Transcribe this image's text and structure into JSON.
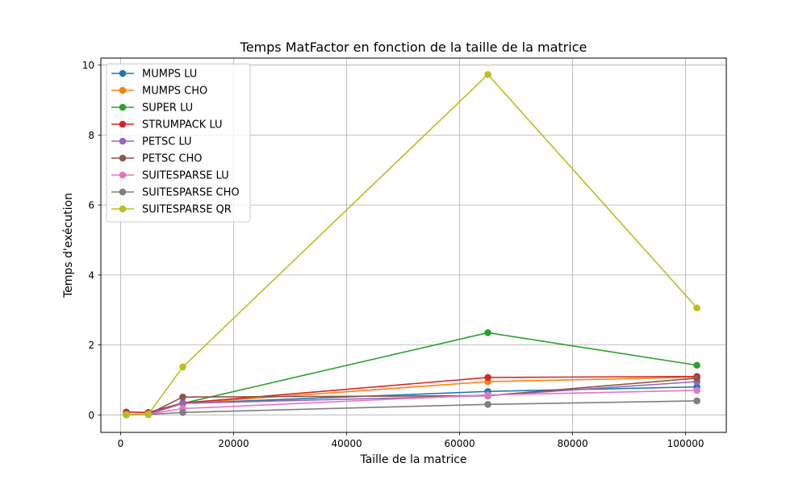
{
  "chart_data": {
    "type": "line",
    "title": "Temps MatFactor en fonction de la taille de la matrice",
    "xlabel": "Taille de la matrice",
    "ylabel": "Temps d'exécution",
    "xlim": [
      -3500,
      107200
    ],
    "ylim": [
      -0.5,
      10.2
    ],
    "xticks": [
      0,
      20000,
      40000,
      60000,
      80000,
      100000
    ],
    "yticks": [
      0,
      2,
      4,
      6,
      8,
      10
    ],
    "grid": true,
    "legend_position": "top-left",
    "x": [
      1000,
      4900,
      11000,
      65000,
      102000
    ],
    "series": [
      {
        "name": "MUMPS LU",
        "color": "#1f77b4",
        "values": [
          0.01,
          0.02,
          0.33,
          0.67,
          0.8
        ]
      },
      {
        "name": "MUMPS CHO",
        "color": "#ff7f0e",
        "values": [
          0.01,
          0.02,
          0.33,
          0.95,
          1.08
        ]
      },
      {
        "name": "SUPER LU",
        "color": "#2ca02c",
        "values": [
          0.01,
          0.02,
          0.33,
          2.35,
          1.42
        ]
      },
      {
        "name": "STRUMPACK LU",
        "color": "#d62728",
        "values": [
          0.08,
          0.07,
          0.34,
          1.07,
          1.1
        ]
      },
      {
        "name": "PETSC LU",
        "color": "#9467bd",
        "values": [
          0.01,
          0.02,
          0.33,
          0.55,
          0.95
        ]
      },
      {
        "name": "PETSC CHO",
        "color": "#8c564b",
        "values": [
          0.01,
          0.02,
          0.51,
          0.55,
          1.05
        ]
      },
      {
        "name": "SUITESPARSE LU",
        "color": "#e377c2",
        "values": [
          0.01,
          0.02,
          0.18,
          0.57,
          0.7
        ]
      },
      {
        "name": "SUITESPARSE CHO",
        "color": "#7f7f7f",
        "values": [
          0.0,
          0.01,
          0.07,
          0.3,
          0.4
        ]
      },
      {
        "name": "SUITESPARSE QR",
        "color": "#bcbd22",
        "values": [
          0.01,
          0.02,
          1.37,
          9.73,
          3.06
        ]
      }
    ]
  }
}
